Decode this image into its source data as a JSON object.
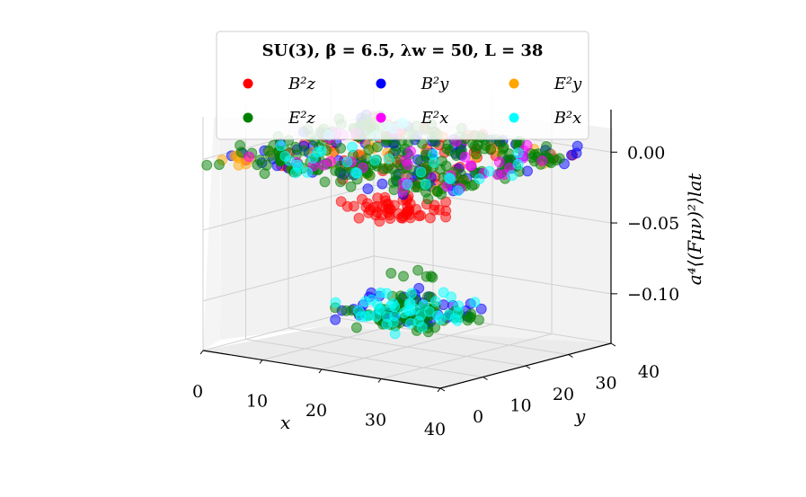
{
  "chart_data": {
    "type": "scatter",
    "projection": "3d",
    "title": "SU(3), β = 6.5, λw = 50, L = 38",
    "xlabel": "x",
    "ylabel": "y",
    "zlabel": "a⁴⟨(Fμν)²⟩lat",
    "xlim": [
      0,
      40
    ],
    "ylim": [
      0,
      40
    ],
    "zlim": [
      -0.135,
      0.03
    ],
    "x_ticks": [
      "0",
      "10",
      "20",
      "30",
      "40"
    ],
    "y_ticks": [
      "0",
      "10",
      "20",
      "30",
      "40"
    ],
    "z_ticks": [
      "0.00",
      "−0.05",
      "−0.10"
    ],
    "z_tick_values": [
      0.0,
      -0.05,
      -0.1
    ],
    "grid": true,
    "legend": {
      "placement": "top-center",
      "columns": 3
    },
    "series": [
      {
        "name": "B²z",
        "color": "#ff0000",
        "clusters": [
          {
            "x": [
              0,
              38
            ],
            "y": [
              0,
              38
            ],
            "z_mean": 0.0,
            "z_spread": 0.006,
            "n": 60
          },
          {
            "x": [
              13,
              25
            ],
            "y": [
              13,
              25
            ],
            "z_mean": -0.037,
            "z_spread": 0.008,
            "n": 55
          }
        ]
      },
      {
        "name": "B²y",
        "color": "#0000ff",
        "clusters": [
          {
            "x": [
              0,
              38
            ],
            "y": [
              0,
              38
            ],
            "z_mean": 0.0,
            "z_spread": 0.01,
            "n": 90
          },
          {
            "x": [
              12,
              28
            ],
            "y": [
              12,
              28
            ],
            "z_mean": -0.108,
            "z_spread": 0.012,
            "n": 40
          }
        ]
      },
      {
        "name": "E²y",
        "color": "#ffa500",
        "clusters": [
          {
            "x": [
              0,
              38
            ],
            "y": [
              0,
              38
            ],
            "z_mean": 0.0,
            "z_spread": 0.007,
            "n": 35
          }
        ]
      },
      {
        "name": "E²z",
        "color": "#008000",
        "clusters": [
          {
            "x": [
              0,
              38
            ],
            "y": [
              0,
              38
            ],
            "z_mean": 0.0,
            "z_spread": 0.009,
            "n": 230
          },
          {
            "x": [
              12,
              28
            ],
            "y": [
              12,
              28
            ],
            "z_mean": -0.113,
            "z_spread": 0.01,
            "n": 70
          },
          {
            "x": [
              14,
              26
            ],
            "y": [
              14,
              26
            ],
            "z_mean": -0.082,
            "z_spread": 0.006,
            "n": 6
          }
        ]
      },
      {
        "name": "E²x",
        "color": "#ff00ff",
        "clusters": [
          {
            "x": [
              0,
              38
            ],
            "y": [
              0,
              38
            ],
            "z_mean": 0.0,
            "z_spread": 0.008,
            "n": 35
          }
        ]
      },
      {
        "name": "B²x",
        "color": "#00ffff",
        "clusters": [
          {
            "x": [
              0,
              38
            ],
            "y": [
              0,
              38
            ],
            "z_mean": 0.0,
            "z_spread": 0.008,
            "n": 35
          },
          {
            "x": [
              12,
              28
            ],
            "y": [
              12,
              28
            ],
            "z_mean": -0.11,
            "z_spread": 0.012,
            "n": 45
          }
        ]
      }
    ]
  }
}
